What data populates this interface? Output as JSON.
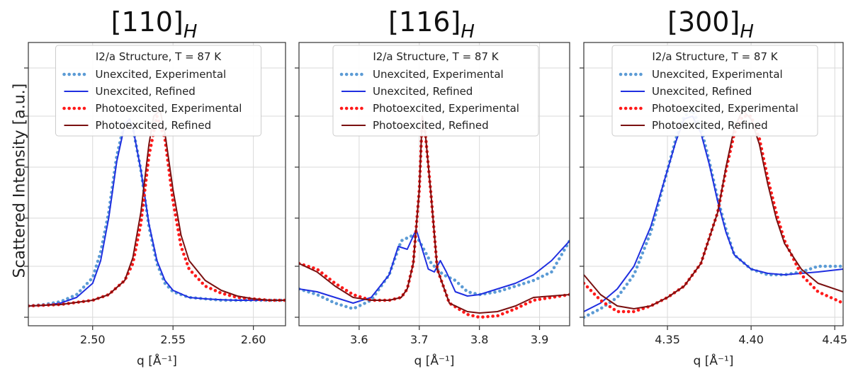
{
  "figure": {
    "ylabel": "Scattered Intensity [a.u.]"
  },
  "colors": {
    "unexcited_experimental": "#5b9bd5",
    "unexcited_refined": "#1f2fe0",
    "photoexcited_experimental": "#ff1a1a",
    "photoexcited_refined": "#7a1010",
    "grid": "#d9d9d9",
    "axis": "#333333"
  },
  "chart_data": [
    {
      "type": "line",
      "title": "[110]",
      "title_subscript": "H",
      "xlabel": "q [Å⁻¹]",
      "xlim": [
        2.46,
        2.62
      ],
      "ylim": [
        0,
        1.0
      ],
      "xticks": [
        2.5,
        2.55,
        2.6
      ],
      "xtick_labels": [
        "2.50",
        "2.55",
        "2.60"
      ],
      "yticks": [
        0.03,
        0.21,
        0.38,
        0.56,
        0.74,
        0.91
      ],
      "grid": true,
      "legend": {
        "title": "I2/a Structure, T = 87 K",
        "placement": "top",
        "entries": [
          "Unexcited, Experimental",
          "Unexcited, Refined",
          "Photoexcited, Experimental",
          "Photoexcited, Refined"
        ]
      },
      "series": [
        {
          "name": "Unexcited, Experimental",
          "style": "dotted",
          "x": [
            2.46,
            2.47,
            2.48,
            2.49,
            2.5,
            2.505,
            2.51,
            2.515,
            2.52,
            2.525,
            2.53,
            2.535,
            2.54,
            2.545,
            2.55,
            2.56,
            2.57,
            2.58,
            2.59,
            2.6,
            2.61,
            2.62
          ],
          "y": [
            0.07,
            0.075,
            0.085,
            0.11,
            0.17,
            0.26,
            0.4,
            0.6,
            0.72,
            0.7,
            0.55,
            0.35,
            0.22,
            0.15,
            0.12,
            0.1,
            0.095,
            0.09,
            0.09,
            0.09,
            0.09,
            0.09
          ]
        },
        {
          "name": "Unexcited, Refined",
          "style": "solid",
          "x": [
            2.46,
            2.47,
            2.48,
            2.49,
            2.5,
            2.505,
            2.51,
            2.515,
            2.52,
            2.523,
            2.525,
            2.53,
            2.535,
            2.54,
            2.545,
            2.55,
            2.56,
            2.57,
            2.58,
            2.59,
            2.6,
            2.61,
            2.62
          ],
          "y": [
            0.07,
            0.072,
            0.08,
            0.1,
            0.15,
            0.23,
            0.38,
            0.58,
            0.71,
            0.73,
            0.7,
            0.55,
            0.36,
            0.23,
            0.16,
            0.125,
            0.1,
            0.095,
            0.092,
            0.09,
            0.09,
            0.09,
            0.09
          ]
        },
        {
          "name": "Photoexcited, Experimental",
          "style": "dotted",
          "x": [
            2.46,
            2.48,
            2.5,
            2.51,
            2.52,
            2.525,
            2.53,
            2.535,
            2.54,
            2.545,
            2.55,
            2.555,
            2.56,
            2.57,
            2.58,
            2.59,
            2.6,
            2.61,
            2.62
          ],
          "y": [
            0.07,
            0.075,
            0.09,
            0.11,
            0.16,
            0.22,
            0.36,
            0.6,
            0.74,
            0.66,
            0.44,
            0.28,
            0.2,
            0.14,
            0.115,
            0.1,
            0.095,
            0.09,
            0.09
          ]
        },
        {
          "name": "Photoexcited, Refined",
          "style": "solid",
          "x": [
            2.46,
            2.48,
            2.5,
            2.51,
            2.52,
            2.525,
            2.53,
            2.535,
            2.538,
            2.542,
            2.545,
            2.55,
            2.555,
            2.56,
            2.57,
            2.58,
            2.59,
            2.6,
            2.61,
            2.62
          ],
          "y": [
            0.07,
            0.075,
            0.09,
            0.11,
            0.16,
            0.24,
            0.4,
            0.64,
            0.74,
            0.76,
            0.68,
            0.48,
            0.32,
            0.23,
            0.16,
            0.125,
            0.105,
            0.095,
            0.09,
            0.09
          ]
        }
      ]
    },
    {
      "type": "line",
      "title": "[116]",
      "title_subscript": "H",
      "xlabel": "q [Å⁻¹]",
      "xlim": [
        3.5,
        3.95
      ],
      "ylim": [
        0,
        1.0
      ],
      "xticks": [
        3.6,
        3.7,
        3.8,
        3.9
      ],
      "xtick_labels": [
        "3.6",
        "3.7",
        "3.8",
        "3.9"
      ],
      "yticks": [
        0.03,
        0.21,
        0.38,
        0.56,
        0.74,
        0.91
      ],
      "grid": true,
      "legend": {
        "title": "I2/a Structure, T = 87 K",
        "placement": "top",
        "entries": [
          "Unexcited, Experimental",
          "Unexcited, Refined",
          "Photoexcited, Experimental",
          "Photoexcited, Refined"
        ]
      },
      "series": [
        {
          "name": "Unexcited, Experimental",
          "style": "dotted",
          "x": [
            3.5,
            3.53,
            3.56,
            3.59,
            3.62,
            3.65,
            3.67,
            3.69,
            3.7,
            3.71,
            3.72,
            3.74,
            3.76,
            3.78,
            3.8,
            3.83,
            3.86,
            3.89,
            3.92,
            3.95
          ],
          "y": [
            0.13,
            0.11,
            0.08,
            0.06,
            0.09,
            0.18,
            0.3,
            0.32,
            0.3,
            0.26,
            0.22,
            0.18,
            0.16,
            0.12,
            0.11,
            0.12,
            0.14,
            0.16,
            0.19,
            0.3
          ]
        },
        {
          "name": "Unexcited, Refined",
          "style": "solid",
          "x": [
            3.5,
            3.53,
            3.56,
            3.59,
            3.62,
            3.65,
            3.665,
            3.68,
            3.695,
            3.705,
            3.715,
            3.725,
            3.735,
            3.745,
            3.76,
            3.78,
            3.8,
            3.83,
            3.86,
            3.89,
            3.92,
            3.95
          ],
          "y": [
            0.13,
            0.12,
            0.1,
            0.08,
            0.1,
            0.18,
            0.28,
            0.27,
            0.34,
            0.27,
            0.2,
            0.19,
            0.23,
            0.19,
            0.12,
            0.105,
            0.11,
            0.13,
            0.15,
            0.18,
            0.23,
            0.3
          ]
        },
        {
          "name": "Photoexcited, Experimental",
          "style": "dotted",
          "x": [
            3.5,
            3.53,
            3.56,
            3.59,
            3.62,
            3.65,
            3.67,
            3.68,
            3.69,
            3.7,
            3.705,
            3.71,
            3.72,
            3.73,
            3.75,
            3.78,
            3.8,
            3.83,
            3.86,
            3.89,
            3.92,
            3.95
          ],
          "y": [
            0.22,
            0.2,
            0.15,
            0.11,
            0.09,
            0.09,
            0.1,
            0.13,
            0.22,
            0.48,
            0.73,
            0.68,
            0.45,
            0.2,
            0.08,
            0.04,
            0.03,
            0.035,
            0.06,
            0.09,
            0.1,
            0.11
          ]
        },
        {
          "name": "Photoexcited, Refined",
          "style": "solid",
          "x": [
            3.5,
            3.53,
            3.56,
            3.59,
            3.62,
            3.65,
            3.67,
            3.68,
            3.69,
            3.7,
            3.705,
            3.71,
            3.72,
            3.73,
            3.75,
            3.78,
            3.8,
            3.83,
            3.86,
            3.89,
            3.92,
            3.95
          ],
          "y": [
            0.22,
            0.19,
            0.14,
            0.1,
            0.09,
            0.09,
            0.1,
            0.13,
            0.22,
            0.48,
            0.74,
            0.68,
            0.45,
            0.2,
            0.08,
            0.05,
            0.045,
            0.05,
            0.07,
            0.1,
            0.105,
            0.11
          ]
        }
      ]
    },
    {
      "type": "line",
      "title": "[300]",
      "title_subscript": "H",
      "xlabel": "q [Å⁻¹]",
      "xlim": [
        4.3,
        4.455
      ],
      "ylim": [
        0,
        1.0
      ],
      "xticks": [
        4.35,
        4.4,
        4.45
      ],
      "xtick_labels": [
        "4.35",
        "4.40",
        "4.45"
      ],
      "yticks": [
        0.03,
        0.21,
        0.38,
        0.56,
        0.74,
        0.91
      ],
      "grid": true,
      "legend": {
        "title": "I2/a Structure, T = 87 K",
        "placement": "top",
        "entries": [
          "Unexcited, Experimental",
          "Unexcited, Refined",
          "Photoexcited, Experimental",
          "Photoexcited, Refined"
        ]
      },
      "series": [
        {
          "name": "Unexcited, Experimental",
          "style": "dotted",
          "x": [
            4.3,
            4.31,
            4.32,
            4.33,
            4.34,
            4.35,
            4.355,
            4.36,
            4.365,
            4.37,
            4.375,
            4.38,
            4.385,
            4.39,
            4.4,
            4.41,
            4.42,
            4.43,
            4.44,
            4.455
          ],
          "y": [
            0.03,
            0.06,
            0.1,
            0.18,
            0.33,
            0.55,
            0.66,
            0.74,
            0.76,
            0.7,
            0.58,
            0.45,
            0.34,
            0.25,
            0.2,
            0.18,
            0.18,
            0.19,
            0.21,
            0.21
          ]
        },
        {
          "name": "Unexcited, Refined",
          "style": "solid",
          "x": [
            4.3,
            4.31,
            4.32,
            4.33,
            4.34,
            4.35,
            4.355,
            4.36,
            4.365,
            4.37,
            4.375,
            4.38,
            4.385,
            4.39,
            4.4,
            4.41,
            4.42,
            4.43,
            4.44,
            4.455
          ],
          "y": [
            0.05,
            0.08,
            0.13,
            0.21,
            0.35,
            0.55,
            0.65,
            0.73,
            0.74,
            0.68,
            0.57,
            0.44,
            0.33,
            0.25,
            0.2,
            0.185,
            0.18,
            0.185,
            0.19,
            0.2
          ]
        },
        {
          "name": "Photoexcited, Experimental",
          "style": "dotted",
          "x": [
            4.3,
            4.31,
            4.32,
            4.33,
            4.34,
            4.35,
            4.36,
            4.37,
            4.38,
            4.385,
            4.39,
            4.395,
            4.4,
            4.405,
            4.41,
            4.415,
            4.42,
            4.43,
            4.44,
            4.455
          ],
          "y": [
            0.15,
            0.09,
            0.05,
            0.05,
            0.07,
            0.1,
            0.14,
            0.22,
            0.4,
            0.55,
            0.68,
            0.74,
            0.74,
            0.66,
            0.52,
            0.4,
            0.3,
            0.18,
            0.12,
            0.08
          ]
        },
        {
          "name": "Photoexcited, Refined",
          "style": "solid",
          "x": [
            4.3,
            4.31,
            4.32,
            4.33,
            4.34,
            4.35,
            4.36,
            4.37,
            4.38,
            4.385,
            4.39,
            4.395,
            4.4,
            4.405,
            4.41,
            4.415,
            4.42,
            4.43,
            4.44,
            4.455
          ],
          "y": [
            0.18,
            0.11,
            0.07,
            0.06,
            0.07,
            0.1,
            0.14,
            0.22,
            0.4,
            0.56,
            0.7,
            0.76,
            0.73,
            0.64,
            0.5,
            0.38,
            0.29,
            0.2,
            0.15,
            0.12
          ]
        }
      ]
    }
  ]
}
